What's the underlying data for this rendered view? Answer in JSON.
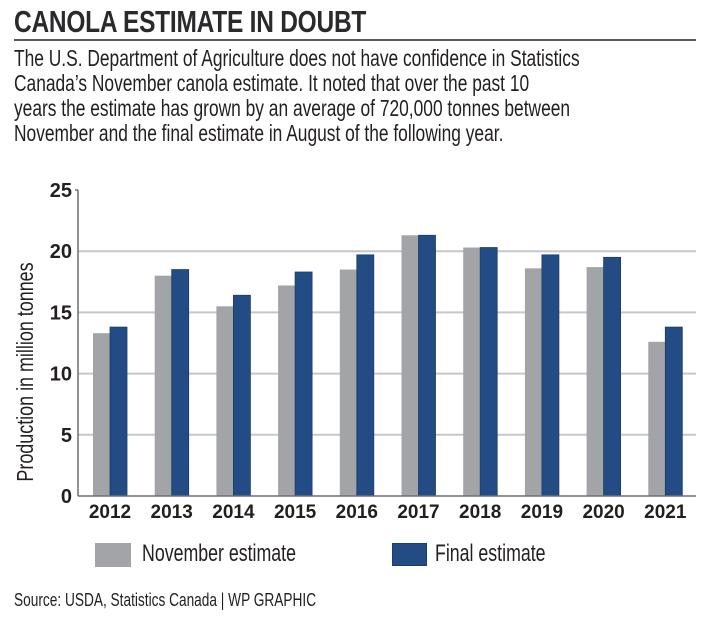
{
  "title": "CANOLA ESTIMATE IN DOUBT",
  "intro_lines": [
    "The U.S. Department of Agriculture does not have confidence in Statistics",
    "Canada’s November canola estimate. It noted that over the past 10",
    "years the estimate has grown by an average of 720,000 tonnes between",
    "November and the final estimate in August of the following year."
  ],
  "source": "Source: USDA, Statistics Canada  |  WP GRAPHIC",
  "colors": {
    "november": "#a3a4a8",
    "final": "#244c84",
    "final_border": "#1b3c6c",
    "grid": "#c6c7c9",
    "axis": "#6d6e71",
    "text": "#231f20"
  },
  "chart_data": {
    "type": "bar",
    "title": "CANOLA ESTIMATE IN DOUBT",
    "xlabel": "",
    "ylabel": "Production in million tonnes",
    "ylim": [
      0,
      25
    ],
    "yticks": [
      0,
      5,
      10,
      15,
      20,
      25
    ],
    "grid": true,
    "legend": "bottom",
    "categories": [
      "2012",
      "2013",
      "2014",
      "2015",
      "2016",
      "2017",
      "2018",
      "2019",
      "2020",
      "2021"
    ],
    "series": [
      {
        "name": "November estimate",
        "values": [
          13.3,
          18.0,
          15.5,
          17.2,
          18.5,
          21.3,
          20.3,
          18.6,
          18.7,
          12.6
        ]
      },
      {
        "name": "Final estimate",
        "values": [
          13.8,
          18.5,
          16.4,
          18.3,
          19.7,
          21.3,
          20.3,
          19.7,
          19.5,
          13.8
        ]
      }
    ]
  }
}
